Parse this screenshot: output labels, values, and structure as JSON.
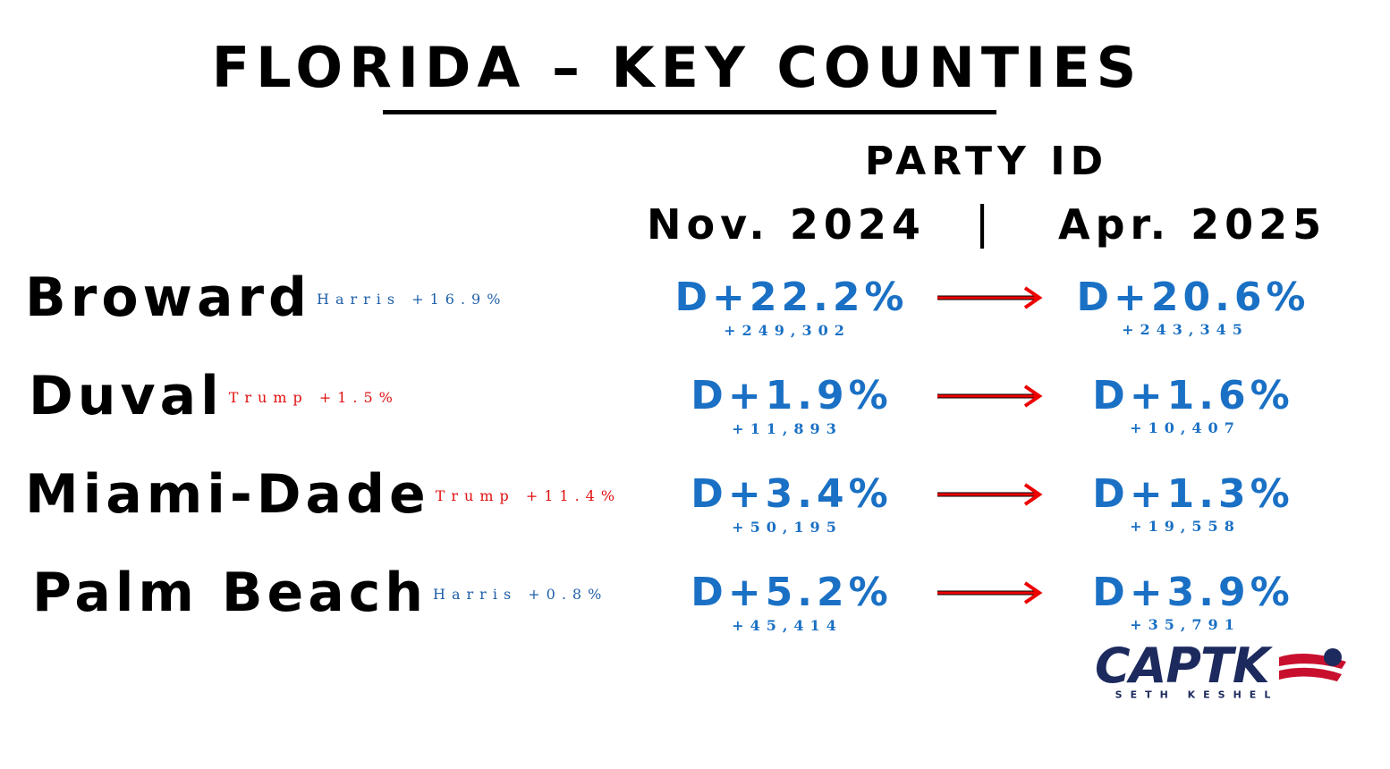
{
  "title": "FLORIDA – KEY COUNTIES",
  "header": "PARTY ID",
  "columns": {
    "from": "Nov. 2024",
    "separator": "|",
    "to": "Apr. 2025"
  },
  "rows": [
    {
      "county": "Broward",
      "result": "Harris +16.9%",
      "result_color": "#1f5fa8",
      "from": "D+22.2%",
      "from_count": "+249,302",
      "to": "D+20.6%",
      "to_count": "+243,345"
    },
    {
      "county": "Duval",
      "result": "Trump +1.5%",
      "result_color": "#e01010",
      "from": "D+1.9%",
      "from_count": "+11,893",
      "to": "D+1.6%",
      "to_count": "+10,407"
    },
    {
      "county": "Miami-Dade",
      "result": "Trump +11.4%",
      "result_color": "#e01010",
      "from": "D+3.4%",
      "from_count": "+50,195",
      "to": "D+1.3%",
      "to_count": "+19,558"
    },
    {
      "county": "Palm Beach",
      "result": "Harris +0.8%",
      "result_color": "#1f5fa8",
      "from": "D+5.2%",
      "from_count": "+45,414",
      "to": "D+3.9%",
      "to_count": "+35,791"
    }
  ],
  "logo": {
    "name": "CAPTK",
    "tagline": "SETH KESHEL"
  }
}
